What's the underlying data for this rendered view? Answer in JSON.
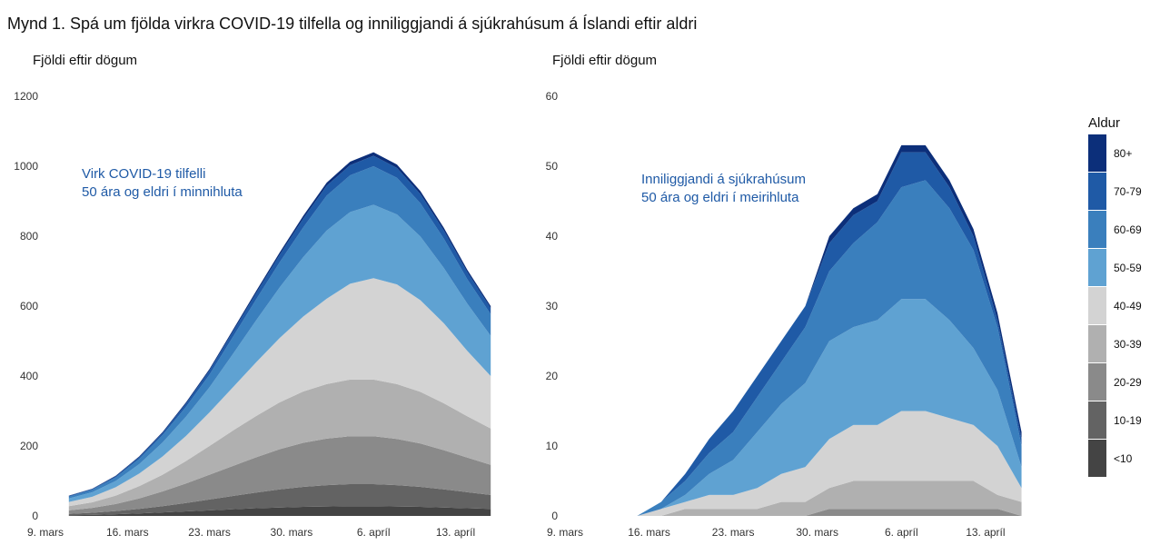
{
  "figure_title": "Mynd 1. Spá um fjölda virkra COVID-19 tilfella og inniliggjandi á sjúkrahúsum á Íslandi eftir aldri",
  "legend": {
    "title": "Aldur",
    "items": [
      {
        "label": "80+",
        "color": "#0c2f7a"
      },
      {
        "label": "70-79",
        "color": "#1f5aa6"
      },
      {
        "label": "60-69",
        "color": "#3a7fbd"
      },
      {
        "label": "50-59",
        "color": "#5fa2d2"
      },
      {
        "label": "40-49",
        "color": "#d3d3d3"
      },
      {
        "label": "30-39",
        "color": "#b0b0b0"
      },
      {
        "label": "20-29",
        "color": "#8a8a8a"
      },
      {
        "label": "10-19",
        "color": "#636363"
      },
      {
        "label": "<10",
        "color": "#444444"
      }
    ]
  },
  "chart_data": [
    {
      "type": "area",
      "stacked": true,
      "ylabel": "Fjöldi eftir dögum",
      "annotation": [
        "Virk COVID-19 tilfelli",
        "50 ára og eldri í minnihluta"
      ],
      "x": [
        "2020-03-11",
        "2020-03-13",
        "2020-03-15",
        "2020-03-17",
        "2020-03-19",
        "2020-03-21",
        "2020-03-23",
        "2020-03-25",
        "2020-03-27",
        "2020-03-29",
        "2020-03-31",
        "2020-04-02",
        "2020-04-04",
        "2020-04-06",
        "2020-04-08",
        "2020-04-10",
        "2020-04-12",
        "2020-04-14",
        "2020-04-16"
      ],
      "x_ticks": [
        "9. mars",
        "16. mars",
        "23. mars",
        "30. mars",
        "6. apríl",
        "13. apríl"
      ],
      "y_ticks": [
        0,
        200,
        400,
        600,
        800,
        1000,
        1200
      ],
      "ylim": [
        0,
        1200
      ],
      "series": [
        {
          "name": "<10",
          "values": [
            2,
            3,
            5,
            7,
            10,
            13,
            16,
            19,
            22,
            24,
            26,
            27,
            28,
            28,
            27,
            26,
            24,
            22,
            20
          ]
        },
        {
          "name": "10-19",
          "values": [
            4,
            6,
            9,
            13,
            18,
            24,
            31,
            38,
            45,
            52,
            57,
            61,
            63,
            63,
            61,
            57,
            52,
            46,
            40
          ]
        },
        {
          "name": "20-29",
          "values": [
            10,
            14,
            20,
            30,
            42,
            56,
            71,
            86,
            101,
            115,
            126,
            133,
            137,
            137,
            132,
            124,
            112,
            99,
            86
          ]
        },
        {
          "name": "30-39",
          "values": [
            12,
            16,
            24,
            35,
            48,
            64,
            82,
            101,
            118,
            134,
            147,
            156,
            162,
            162,
            157,
            148,
            134,
            118,
            104
          ]
        },
        {
          "name": "40-49",
          "values": [
            12,
            16,
            24,
            36,
            52,
            72,
            96,
            124,
            154,
            184,
            214,
            244,
            274,
            290,
            285,
            262,
            229,
            187,
            150
          ]
        },
        {
          "name": "50-59",
          "values": [
            10,
            13,
            18,
            27,
            40,
            55,
            72,
            95,
            120,
            145,
            170,
            195,
            205,
            210,
            200,
            182,
            158,
            135,
            115
          ]
        },
        {
          "name": "60-69",
          "values": [
            5,
            7,
            10,
            15,
            21,
            28,
            36,
            49,
            60,
            72,
            85,
            100,
            105,
            110,
            105,
            95,
            84,
            70,
            62
          ]
        },
        {
          "name": "70-79",
          "values": [
            2,
            2,
            3,
            5,
            6,
            9,
            12,
            15,
            18,
            21,
            25,
            28,
            29,
            30,
            28,
            26,
            23,
            20,
            17
          ]
        },
        {
          "name": "80+",
          "values": [
            1,
            1,
            2,
            2,
            3,
            4,
            4,
            5,
            6,
            7,
            8,
            9,
            10,
            10,
            10,
            9,
            8,
            7,
            6
          ]
        }
      ]
    },
    {
      "type": "area",
      "stacked": true,
      "ylabel": "Fjöldi eftir dögum",
      "annotation": [
        "Inniliggjandi á sjúkrahúsum",
        "50 ára og eldri í meirihluta"
      ],
      "x": [
        "2020-03-09",
        "2020-03-11",
        "2020-03-13",
        "2020-03-15",
        "2020-03-17",
        "2020-03-19",
        "2020-03-21",
        "2020-03-23",
        "2020-03-25",
        "2020-03-27",
        "2020-03-29",
        "2020-03-31",
        "2020-04-02",
        "2020-04-04",
        "2020-04-06",
        "2020-04-08",
        "2020-04-10",
        "2020-04-12",
        "2020-04-14",
        "2020-04-16"
      ],
      "x_ticks": [
        "9. mars",
        "16. mars",
        "23. mars",
        "30. mars",
        "6. apríl",
        "13. apríl"
      ],
      "y_ticks": [
        0,
        10,
        20,
        30,
        40,
        50,
        60
      ],
      "ylim": [
        0,
        60
      ],
      "series": [
        {
          "name": "<10",
          "values": [
            0,
            0,
            0,
            0,
            0,
            0,
            0,
            0,
            0,
            0,
            0,
            0,
            0,
            0,
            0,
            0,
            0,
            0,
            0,
            0
          ]
        },
        {
          "name": "10-19",
          "values": [
            0,
            0,
            0,
            0,
            0,
            0,
            0,
            0,
            0,
            0,
            0,
            0,
            0,
            0,
            0,
            0,
            0,
            0,
            0,
            0
          ]
        },
        {
          "name": "20-29",
          "values": [
            0,
            0,
            0,
            0,
            0,
            0,
            0,
            0,
            0,
            0,
            0,
            1,
            1,
            1,
            1,
            1,
            1,
            1,
            1,
            0
          ]
        },
        {
          "name": "30-39",
          "values": [
            0,
            0,
            0,
            0,
            0,
            1,
            1,
            1,
            1,
            2,
            2,
            3,
            4,
            4,
            4,
            4,
            4,
            4,
            2,
            2
          ]
        },
        {
          "name": "40-49",
          "values": [
            0,
            0,
            0,
            0,
            1,
            1,
            2,
            2,
            3,
            4,
            5,
            7,
            8,
            8,
            10,
            10,
            9,
            8,
            7,
            2
          ]
        },
        {
          "name": "50-59",
          "values": [
            0,
            0,
            0,
            0,
            0,
            1,
            3,
            5,
            8,
            10,
            12,
            14,
            14,
            15,
            16,
            16,
            14,
            11,
            8,
            3
          ]
        },
        {
          "name": "60-69",
          "values": [
            0,
            0,
            0,
            0,
            1,
            2,
            3,
            4,
            5,
            6,
            8,
            10,
            12,
            14,
            16,
            17,
            16,
            14,
            9,
            3
          ]
        },
        {
          "name": "70-79",
          "values": [
            0,
            0,
            0,
            0,
            0,
            1,
            2,
            3,
            3,
            3,
            3,
            4,
            4,
            3,
            5,
            4,
            3,
            2,
            1,
            1
          ]
        },
        {
          "name": "80+",
          "values": [
            0,
            0,
            0,
            0,
            0,
            0,
            0,
            0,
            0,
            0,
            0,
            1,
            1,
            1,
            1,
            1,
            1,
            1,
            1,
            1
          ]
        }
      ]
    }
  ]
}
